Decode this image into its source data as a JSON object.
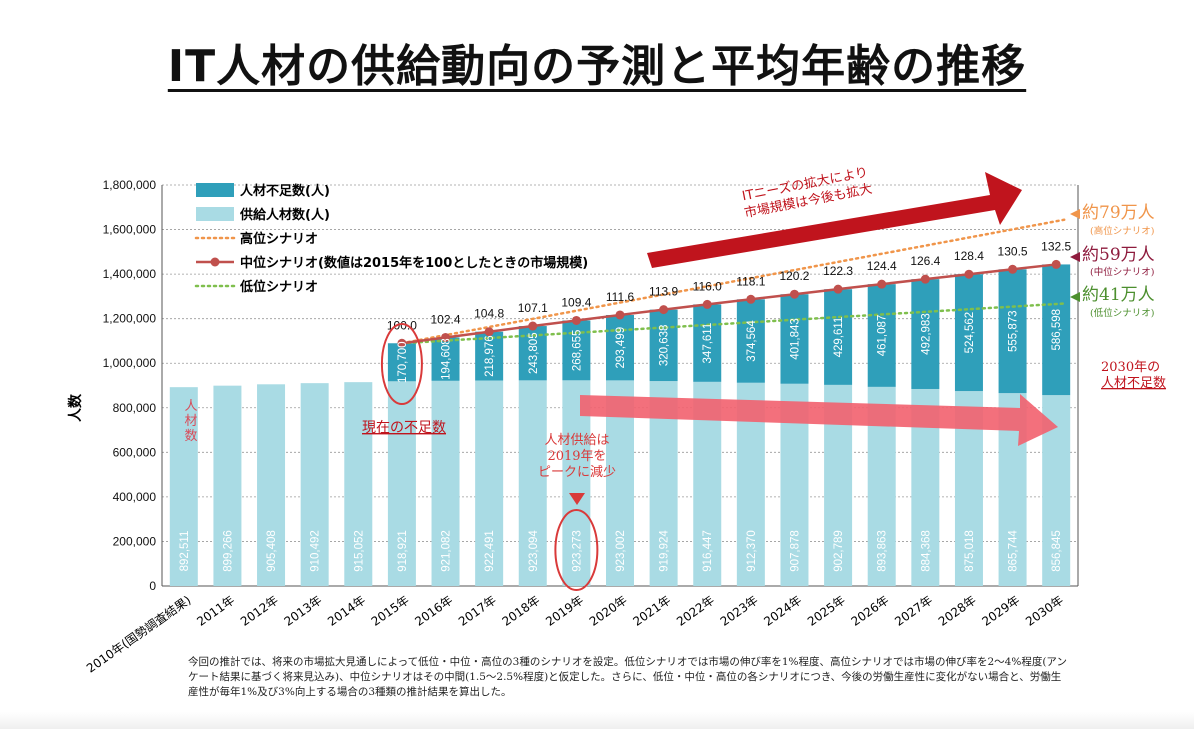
{
  "title": "IT人材の供給動向の予測と平均年齢の推移",
  "chart_data": {
    "type": "bar",
    "ylabel": "人数",
    "ylim": [
      0,
      1800000
    ],
    "yticks": [
      "0",
      "200,000",
      "400,000",
      "600,000",
      "800,000",
      "1,000,000",
      "1,200,000",
      "1,400,000",
      "1,600,000",
      "1,800,000"
    ],
    "categories": [
      "2010年(国勢調査結果)",
      "2011年",
      "2012年",
      "2013年",
      "2014年",
      "2015年",
      "2016年",
      "2017年",
      "2018年",
      "2019年",
      "2020年",
      "2021年",
      "2022年",
      "2023年",
      "2024年",
      "2025年",
      "2026年",
      "2027年",
      "2028年",
      "2029年",
      "2030年"
    ],
    "supply": {
      "name": "供給人材数(人)",
      "values": [
        892511,
        899266,
        905408,
        910492,
        915052,
        918921,
        921082,
        922491,
        923094,
        923273,
        923002,
        919924,
        916447,
        912370,
        907878,
        902789,
        893863,
        884368,
        875018,
        865744,
        856845
      ],
      "labels": [
        "892,511",
        "899,266",
        "905,408",
        "910,492",
        "915,052",
        "918,921",
        "921,082",
        "922,491",
        "923,094",
        "923,273",
        "923,002",
        "919,924",
        "916,447",
        "912,370",
        "907,878",
        "902,789",
        "893,863",
        "884,368",
        "875,018",
        "865,744",
        "856,845"
      ]
    },
    "shortage": {
      "name": "人材不足数(人)",
      "values": [
        null,
        null,
        null,
        null,
        null,
        170700,
        194608,
        218976,
        243805,
        268655,
        293499,
        320638,
        347611,
        374564,
        401843,
        429611,
        461087,
        492983,
        524562,
        555873,
        586598
      ],
      "labels": [
        "",
        "",
        "",
        "",
        "",
        "170,700",
        "194,608",
        "218,976",
        "243,805",
        "268,655",
        "293,499",
        "320,638",
        "347,611",
        "374,564",
        "401,843",
        "429,611",
        "461,087",
        "492,983",
        "524,562",
        "555,873",
        "586,598"
      ]
    },
    "mid_scenario": {
      "name": "中位シナリオ(数値は2015年を100としたときの市場規模)",
      "values": [
        null,
        null,
        null,
        null,
        null,
        100.0,
        102.4,
        104.8,
        107.1,
        109.4,
        111.6,
        113.9,
        116.0,
        118.1,
        120.2,
        122.3,
        124.4,
        126.4,
        128.4,
        130.5,
        132.5
      ],
      "labels": [
        "",
        "",
        "",
        "",
        "",
        "100.0",
        "102.4",
        "104.8",
        "107.1",
        "109.4",
        "111.6",
        "113.9",
        "116.0",
        "118.1",
        "120.2",
        "122.3",
        "124.4",
        "126.4",
        "128.4",
        "130.5",
        "132.5"
      ]
    },
    "high_scenario": {
      "name": "高位シナリオ",
      "start": 1089621,
      "end": 1644000
    },
    "low_scenario": {
      "name": "低位シナリオ",
      "start": 1089621,
      "end": 1268000
    },
    "legend_position": "top-left",
    "grid": true,
    "colors": {
      "shortage": "#2f9fba",
      "supply": "#a9dbe4",
      "mid": "#c0504d",
      "high": "#f0954a",
      "low": "#7fbf4d",
      "annotation_red": "#d93a3a",
      "arrow_dark": "#c0141d",
      "arrow_pink": "#f2616e"
    }
  },
  "annotations": {
    "it_needs": [
      "ITニーズの拡大により",
      "市場規模は今後も拡大"
    ],
    "high_total": "約79万人",
    "high_sub": "(高位シナリオ)",
    "mid_total": "約59万人",
    "mid_sub": "(中位シナリオ)",
    "low_total": "約41万人",
    "low_sub": "(低位シナリオ)",
    "shortage_2030": [
      "2030年の",
      "人材不足数"
    ],
    "current_shortage": "現在の不足数",
    "supply_peak": [
      "人材供給は",
      "2019年を",
      "ピークに減少"
    ],
    "bar_label": [
      "人",
      "材",
      "数"
    ]
  },
  "footnote": "今回の推計では、将来の市場拡大見通しによって低位・中位・高位の3種のシナリオを設定。低位シナリオでは市場の伸び率を1%程度、高位シナリオでは市場の伸び率を2〜4%程度(アンケート結果に基づく将来見込み)、中位シナリオはその中間(1.5〜2.5%程度)と仮定した。さらに、低位・中位・高位の各シナリオにつき、今後の労働生産性に変化がない場合と、労働生産性が毎年1%及び3%向上する場合の3種類の推計結果を算出した。"
}
